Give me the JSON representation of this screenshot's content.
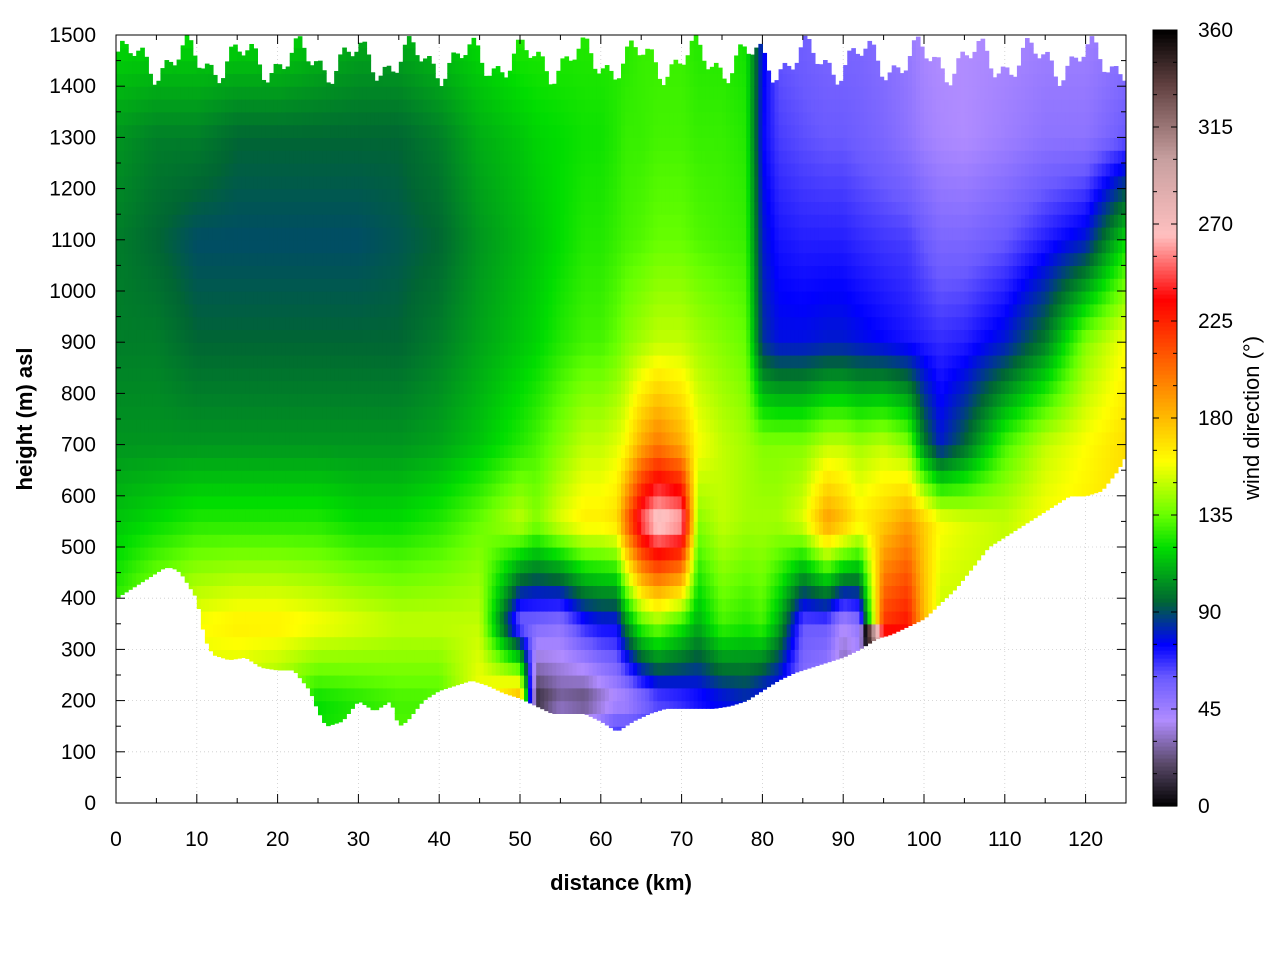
{
  "chart_data": {
    "type": "heatmap",
    "title": "",
    "xlabel": "distance (km)",
    "ylabel": "height (m) asl",
    "colorbar_label": "wind direction (°)",
    "xlim": [
      0,
      125
    ],
    "ylim": [
      0,
      1500
    ],
    "clim": [
      0,
      360
    ],
    "x_ticks": [
      "0",
      "10",
      "20",
      "30",
      "40",
      "50",
      "60",
      "70",
      "80",
      "90",
      "100",
      "110",
      "120"
    ],
    "y_ticks": [
      "0",
      "100",
      "200",
      "300",
      "400",
      "500",
      "600",
      "700",
      "800",
      "900",
      "1000",
      "1100",
      "1200",
      "1300",
      "1400",
      "1500"
    ],
    "colorbar_ticks": [
      "0",
      "45",
      "90",
      "135",
      "180",
      "225",
      "270",
      "315",
      "360"
    ],
    "grid": true,
    "colormap": [
      {
        "v": 0,
        "c": "#000000"
      },
      {
        "v": 20,
        "c": "#5a4a6a"
      },
      {
        "v": 40,
        "c": "#b08cff"
      },
      {
        "v": 60,
        "c": "#6a5aff"
      },
      {
        "v": 75,
        "c": "#0000ff"
      },
      {
        "v": 95,
        "c": "#006633"
      },
      {
        "v": 120,
        "c": "#00dd00"
      },
      {
        "v": 135,
        "c": "#66ff00"
      },
      {
        "v": 160,
        "c": "#ffff00"
      },
      {
        "v": 185,
        "c": "#ffaa00"
      },
      {
        "v": 215,
        "c": "#ff4400"
      },
      {
        "v": 235,
        "c": "#ff0000"
      },
      {
        "v": 265,
        "c": "#ffc0c0"
      },
      {
        "v": 300,
        "c": "#c8a0a0"
      },
      {
        "v": 335,
        "c": "#604040"
      },
      {
        "v": 360,
        "c": "#000000"
      }
    ],
    "terrain_km": [
      0,
      2,
      4,
      6,
      7,
      8,
      10,
      11,
      12,
      14,
      16,
      18,
      20,
      22,
      24,
      25,
      26,
      28,
      30,
      32,
      33,
      34,
      35,
      36,
      38,
      40,
      42,
      44,
      46,
      48,
      50,
      52,
      54,
      56,
      58,
      60,
      62,
      64,
      66,
      68,
      70,
      72,
      74,
      76,
      78,
      80,
      82,
      84,
      86,
      88,
      90,
      92,
      94,
      96,
      98,
      100,
      102,
      104,
      106,
      108,
      110,
      112,
      114,
      116,
      118,
      120,
      122,
      124,
      125
    ],
    "terrain_m": [
      400,
      420,
      440,
      460,
      460,
      450,
      400,
      320,
      290,
      280,
      285,
      265,
      260,
      260,
      220,
      180,
      150,
      160,
      200,
      180,
      190,
      200,
      150,
      160,
      200,
      220,
      230,
      240,
      230,
      215,
      205,
      190,
      175,
      175,
      175,
      160,
      140,
      160,
      175,
      185,
      185,
      185,
      185,
      190,
      200,
      220,
      240,
      255,
      265,
      275,
      285,
      300,
      320,
      330,
      345,
      360,
      390,
      420,
      460,
      500,
      520,
      540,
      560,
      580,
      600,
      600,
      610,
      650,
      680
    ],
    "top_height_m": 1500,
    "profile_km": [
      0,
      5,
      10,
      15,
      20,
      25,
      30,
      35,
      40,
      45,
      50,
      52,
      55,
      58,
      60,
      62,
      63,
      65,
      67,
      70,
      72,
      75,
      78,
      80,
      82,
      85,
      88,
      90,
      92,
      95,
      98,
      100,
      102,
      105,
      110,
      115,
      120,
      125
    ],
    "profile_heights_m": [
      0,
      200,
      350,
      550,
      700,
      900,
      1100,
      1300,
      1500
    ],
    "wind_direction_deg": [
      [
        145,
        140,
        130,
        115,
        105,
        100,
        100,
        105,
        120
      ],
      [
        165,
        160,
        150,
        120,
        105,
        100,
        95,
        100,
        120
      ],
      [
        155,
        150,
        160,
        125,
        105,
        95,
        90,
        100,
        120
      ],
      [
        150,
        145,
        165,
        125,
        105,
        95,
        90,
        95,
        120
      ],
      [
        140,
        135,
        165,
        125,
        105,
        95,
        90,
        95,
        120
      ],
      [
        125,
        120,
        160,
        125,
        105,
        95,
        90,
        95,
        115
      ],
      [
        130,
        125,
        155,
        120,
        105,
        95,
        90,
        95,
        110
      ],
      [
        135,
        130,
        150,
        120,
        105,
        95,
        92,
        95,
        110
      ],
      [
        135,
        130,
        150,
        125,
        108,
        100,
        95,
        100,
        115
      ],
      [
        140,
        160,
        150,
        135,
        115,
        108,
        105,
        110,
        120
      ],
      [
        150,
        190,
        55,
        150,
        125,
        115,
        112,
        115,
        125
      ],
      [
        130,
        10,
        55,
        140,
        130,
        118,
        115,
        118,
        125
      ],
      [
        130,
        25,
        50,
        155,
        140,
        125,
        120,
        120,
        125
      ],
      [
        130,
        20,
        70,
        165,
        150,
        130,
        125,
        122,
        125
      ],
      [
        130,
        30,
        75,
        165,
        150,
        130,
        125,
        122,
        125
      ],
      [
        130,
        40,
        75,
        170,
        155,
        135,
        128,
        125,
        125
      ],
      [
        130,
        40,
        100,
        200,
        160,
        140,
        130,
        128,
        125
      ],
      [
        130,
        50,
        130,
        250,
        185,
        145,
        132,
        128,
        128
      ],
      [
        130,
        60,
        140,
        275,
        200,
        150,
        135,
        130,
        128
      ],
      [
        130,
        65,
        125,
        265,
        185,
        150,
        135,
        130,
        128
      ],
      [
        130,
        70,
        110,
        140,
        160,
        145,
        132,
        128,
        125
      ],
      [
        130,
        75,
        130,
        150,
        150,
        140,
        130,
        128,
        125
      ],
      [
        130,
        80,
        125,
        145,
        145,
        135,
        128,
        125,
        122
      ],
      [
        130,
        70,
        130,
        145,
        140,
        85,
        80,
        75,
        78
      ],
      [
        130,
        65,
        110,
        145,
        140,
        78,
        72,
        65,
        60
      ],
      [
        130,
        50,
        60,
        155,
        140,
        78,
        70,
        62,
        58
      ],
      [
        130,
        40,
        60,
        190,
        150,
        80,
        70,
        60,
        55
      ],
      [
        130,
        20,
        40,
        180,
        150,
        80,
        70,
        60,
        55
      ],
      [
        130,
        30,
        50,
        165,
        145,
        78,
        68,
        58,
        55
      ],
      [
        130,
        5,
        220,
        175,
        150,
        75,
        66,
        55,
        52
      ],
      [
        130,
        10,
        230,
        190,
        140,
        72,
        65,
        50,
        48
      ],
      [
        130,
        130,
        180,
        175,
        100,
        70,
        60,
        45,
        42
      ],
      [
        130,
        130,
        150,
        160,
        80,
        68,
        55,
        42,
        40
      ],
      [
        130,
        130,
        150,
        155,
        95,
        70,
        55,
        40,
        40
      ],
      [
        130,
        130,
        150,
        150,
        130,
        80,
        60,
        45,
        42
      ],
      [
        130,
        130,
        150,
        160,
        150,
        100,
        70,
        50,
        45
      ],
      [
        130,
        130,
        150,
        165,
        160,
        140,
        80,
        50,
        45
      ],
      [
        130,
        130,
        150,
        170,
        170,
        160,
        120,
        60,
        50
      ]
    ]
  }
}
